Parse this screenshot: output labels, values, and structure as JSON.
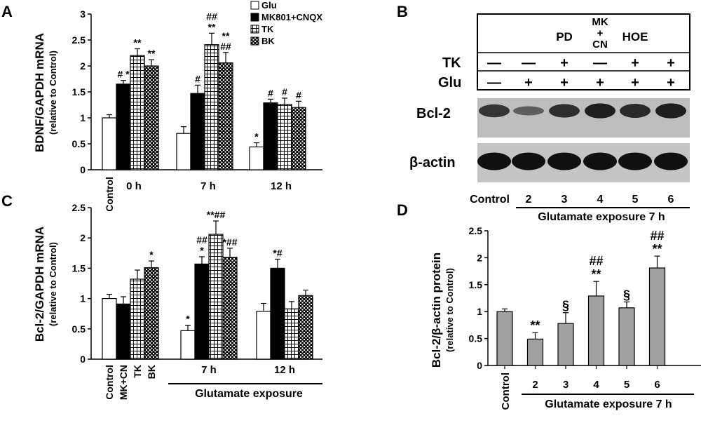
{
  "panels": {
    "A": {
      "letter": "A"
    },
    "B": {
      "letter": "B",
      "treatments": [
        "PD",
        "MK\n+\nCN",
        "HOE"
      ],
      "row_labels": [
        "TK",
        "Glu"
      ],
      "tk_signs": [
        "—",
        "—",
        "+",
        "—",
        "+",
        "+"
      ],
      "glu_signs": [
        "—",
        "+",
        "+",
        "+",
        "+",
        "+"
      ],
      "blot_labels": [
        "Bcl-2",
        "β-actin"
      ],
      "bcl2_intensity": [
        0.75,
        0.35,
        0.8,
        0.95,
        0.85,
        0.95
      ],
      "actin_intensity": [
        0.95,
        0.95,
        0.95,
        0.95,
        0.95,
        0.95
      ],
      "lane_labels": [
        "Control",
        "2",
        "3",
        "4",
        "5",
        "6"
      ],
      "group_label": "Glutamate exposure 7 h"
    },
    "C": {
      "letter": "C"
    },
    "D": {
      "letter": "D"
    }
  },
  "chart_data": [
    {
      "panel": "A",
      "type": "bar",
      "ylabel": "BDNF/GAPDH mRNA",
      "ylabel2": "(relative to Control)",
      "ylim": [
        0,
        3
      ],
      "yticks": [
        "0",
        "0.5",
        "1",
        "1.5",
        "2",
        "2.5",
        "3"
      ],
      "groups": [
        "0 h",
        "7 h",
        "12 h"
      ],
      "control_label": "Control",
      "legend": [
        "Glu",
        "MK801+CNQX",
        "TK",
        "BK"
      ],
      "series": [
        {
          "name": "Glu",
          "values": [
            1.0,
            0.7,
            0.44
          ],
          "errors": [
            0.06,
            0.13,
            0.08
          ],
          "annotations": [
            "",
            "",
            "*"
          ]
        },
        {
          "name": "MK801+CNQX",
          "values": [
            1.65,
            1.47,
            1.29
          ],
          "errors": [
            0.07,
            0.16,
            0.07
          ],
          "annotations": [
            "# *",
            "#",
            "#"
          ]
        },
        {
          "name": "TK",
          "values": [
            2.2,
            2.41,
            1.26
          ],
          "errors": [
            0.13,
            0.22,
            0.12
          ],
          "annotations": [
            "**",
            "##\n**",
            "#"
          ]
        },
        {
          "name": "BK",
          "values": [
            2.0,
            2.06,
            1.2
          ],
          "errors": [
            0.12,
            0.2,
            0.12
          ],
          "annotations": [
            "**",
            "**\n##",
            "#"
          ]
        }
      ]
    },
    {
      "panel": "C",
      "type": "bar",
      "ylabel": "Bcl-2/GAPDH mRNA",
      "ylabel2": "(relative to Control)",
      "ylim": [
        0,
        2.5
      ],
      "yticks": [
        "0",
        "0.5",
        "1",
        "1.5",
        "2",
        "2.5"
      ],
      "first_group_labels": [
        "Control",
        "MK+CN",
        "TK",
        "BK"
      ],
      "groups": [
        "7 h",
        "12 h"
      ],
      "group_label": "Glutamate exposure",
      "series": [
        {
          "name": "Glu",
          "values": [
            1.0,
            0.47,
            0.79
          ],
          "errors": [
            0.07,
            0.09,
            0.13
          ],
          "annotations": [
            "",
            "*",
            ""
          ]
        },
        {
          "name": "MK801+CNQX",
          "values": [
            0.91,
            1.57,
            1.5
          ],
          "errors": [
            0.12,
            0.12,
            0.15
          ],
          "annotations": [
            "",
            "##\n*",
            "*#"
          ]
        },
        {
          "name": "TK",
          "values": [
            1.32,
            2.06,
            0.83
          ],
          "errors": [
            0.15,
            0.22,
            0.12
          ],
          "annotations": [
            "",
            "**##",
            ""
          ]
        },
        {
          "name": "BK",
          "values": [
            1.51,
            1.68,
            1.05
          ],
          "errors": [
            0.11,
            0.15,
            0.09
          ],
          "annotations": [
            "*",
            "*##",
            ""
          ]
        }
      ]
    },
    {
      "panel": "D",
      "type": "bar",
      "ylabel": "Bcl-2/β-actin protein",
      "ylabel2": "(relative to Control)",
      "ylim": [
        0,
        2.5
      ],
      "yticks": [
        "0",
        "0.5",
        "1",
        "1.5",
        "2",
        "2.5"
      ],
      "categories": [
        "Control",
        "2",
        "3",
        "4",
        "5",
        "6"
      ],
      "values": [
        1.0,
        0.49,
        0.78,
        1.29,
        1.07,
        1.81
      ],
      "errors": [
        0.05,
        0.12,
        0.2,
        0.27,
        0.11,
        0.22
      ],
      "annotations": [
        "",
        "**",
        "§",
        "##\n**",
        "§",
        "##\n**"
      ],
      "group_label": "Glutamate exposure 7 h"
    }
  ]
}
